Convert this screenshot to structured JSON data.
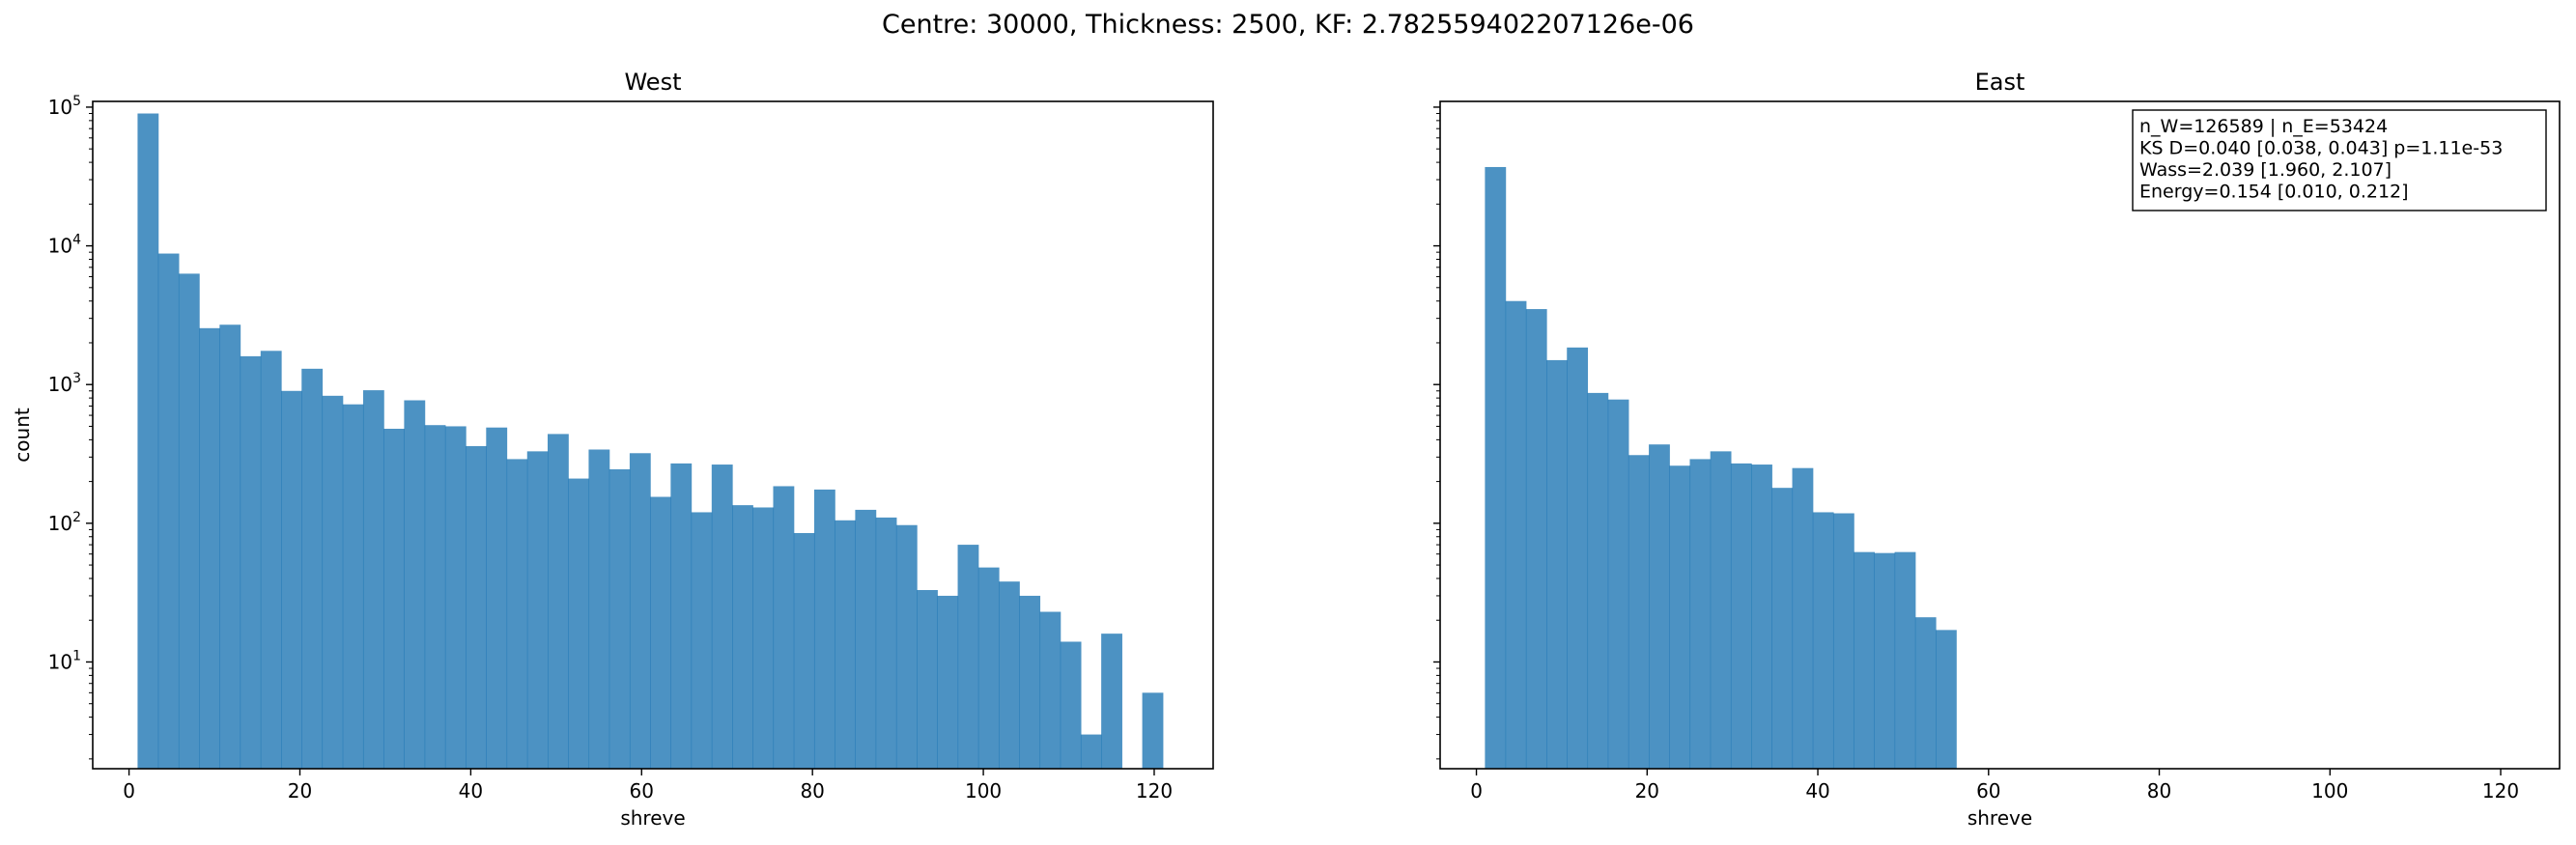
{
  "suptitle": "Centre: 30000, Thickness: 2500, KF: 2.782559402207126e-06",
  "bar_color": "#1f77b4",
  "chart_data": [
    {
      "type": "bar",
      "title": "West",
      "xlabel": "shreve",
      "ylabel": "count",
      "y_scale": "log",
      "xlim": [
        -4.25,
        126.9
      ],
      "ylim": [
        1.7,
        110000
      ],
      "x_ticks": [
        0,
        20,
        40,
        60,
        80,
        100,
        120
      ],
      "y_ticks": [
        10,
        100,
        1000,
        10000,
        100000
      ],
      "y_tick_labels": [
        {
          "base": "10",
          "exp": "1"
        },
        {
          "base": "10",
          "exp": "2"
        },
        {
          "base": "10",
          "exp": "3"
        },
        {
          "base": "10",
          "exp": "4"
        },
        {
          "base": "10",
          "exp": "5"
        }
      ],
      "bin_start": 1,
      "bin_width": 2.4,
      "values": [
        90000,
        8800,
        6300,
        2550,
        2700,
        1600,
        1750,
        900,
        1300,
        830,
        720,
        910,
        480,
        770,
        510,
        500,
        360,
        490,
        290,
        330,
        440,
        210,
        340,
        245,
        320,
        155,
        270,
        120,
        265,
        135,
        130,
        185,
        85,
        175,
        105,
        125,
        110,
        97,
        33,
        30,
        70,
        48,
        38,
        30,
        23,
        14,
        3,
        16,
        0,
        6
      ]
    },
    {
      "type": "bar",
      "title": "East",
      "xlabel": "shreve",
      "ylabel": "",
      "y_scale": "log",
      "xlim": [
        -4.25,
        126.9
      ],
      "ylim": [
        1.7,
        110000
      ],
      "x_ticks": [
        0,
        20,
        40,
        60,
        80,
        100,
        120
      ],
      "y_ticks": [
        10,
        100,
        1000,
        10000,
        100000
      ],
      "bin_start": 1,
      "bin_width": 2.4,
      "values": [
        37000,
        4000,
        3500,
        1500,
        1850,
        870,
        780,
        310,
        370,
        260,
        290,
        330,
        270,
        265,
        180,
        250,
        120,
        118,
        62,
        61,
        62,
        21,
        17
      ],
      "annotation": [
        "n_W=126589 | n_E=53424",
        "KS D=0.040 [0.038, 0.043]  p=1.11e-53",
        "Wass=2.039 [1.960, 2.107]",
        "Energy=0.154 [0.010, 0.212]"
      ],
      "annotation_position": "top-right"
    }
  ]
}
